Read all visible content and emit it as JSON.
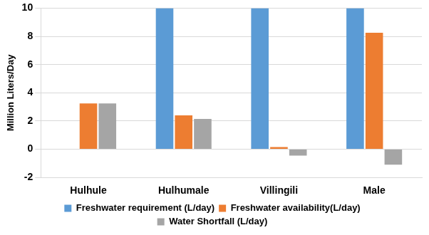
{
  "chart_data": {
    "type": "bar",
    "categories": [
      "Hulhule",
      "Hulhumale",
      "Villingili",
      "Male"
    ],
    "y_label": "Million Liters/Day",
    "series": [
      {
        "name": "Freshwater requirement (L/day)",
        "color": "#5b9bd5",
        "values": [
          0,
          10,
          10,
          10
        ]
      },
      {
        "name": "Freshwater availability(L/day)",
        "color": "#ed7d31",
        "values": [
          3.25,
          2.4,
          0.15,
          8.25
        ]
      },
      {
        "name": "Water Shortfall (L/day)",
        "color": "#a5a5a5",
        "values": [
          3.25,
          2.15,
          -0.45,
          -1.1
        ]
      }
    ],
    "ylim": [
      -2,
      10
    ],
    "yticks": [
      -2,
      0,
      2,
      4,
      6,
      8,
      10
    ],
    "grid": true,
    "legend": "bottom"
  }
}
